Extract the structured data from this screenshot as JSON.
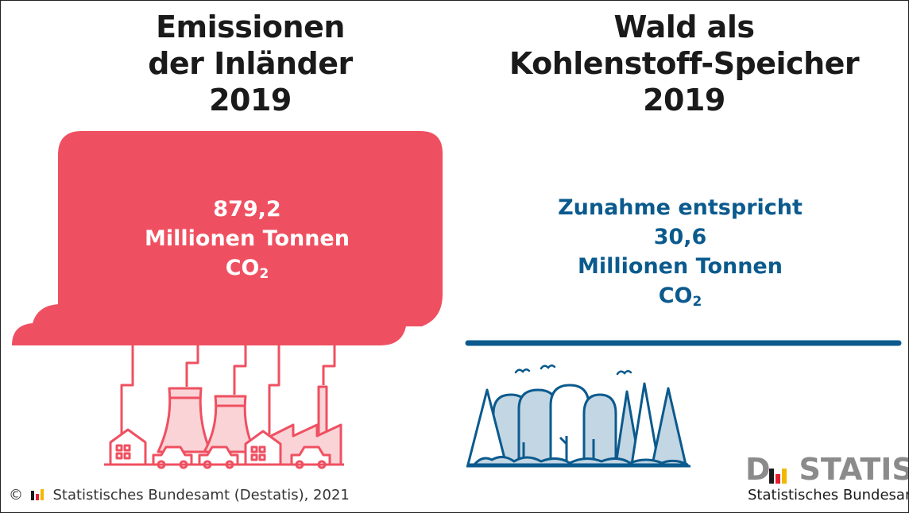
{
  "left": {
    "title_lines": [
      "Emissionen",
      "der Inländer",
      "2019"
    ],
    "value": "879,2",
    "unit": "Millionen Tonnen",
    "gas": "CO",
    "gas_sub": "2"
  },
  "right": {
    "title_lines": [
      "Wald als",
      "Kohlenstoff-Speicher",
      "2019"
    ],
    "intro": "Zunahme entspricht",
    "value": "30,6",
    "unit": "Millionen Tonnen",
    "gas": "CO",
    "gas_sub": "2"
  },
  "footer": {
    "copyright_symbol": "©",
    "credit": "Statistisches Bundesamt (Destatis), 2021",
    "logo_word_left": "D",
    "logo_word_right": "STATIS",
    "logo_subtitle": "Statistisches Bundesamt"
  },
  "colors": {
    "cloud": "#ef5061",
    "forest_blue": "#0b5a8e",
    "tree_fill": "#c3d6e3",
    "logo_black": "#1a1a1a",
    "logo_red": "#e1202d",
    "logo_gold": "#f1b800"
  },
  "icons": [
    "cloud-icon",
    "factory-icon",
    "forest-icon",
    "bird-icon",
    "destatis-logo-icon"
  ]
}
